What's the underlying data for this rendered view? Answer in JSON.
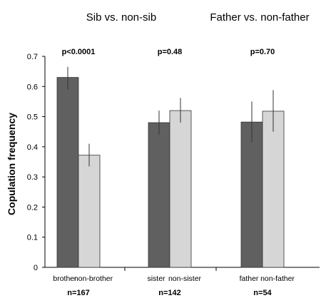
{
  "chart_data": {
    "type": "bar",
    "ylabel": "Copulation frequency",
    "ylim": [
      0,
      0.7
    ],
    "yticks": [
      "0",
      "0.1",
      "0.2",
      "0.3",
      "0.4",
      "0.5",
      "0.6",
      "0.7"
    ],
    "header_titles": [
      "Sib vs. non-sib",
      "Father vs. non-father"
    ],
    "colors": {
      "dark": "#606060",
      "light": "#d6d6d6"
    },
    "groups": [
      {
        "p_label": "p<0.0001",
        "n_label": "n=167",
        "bars": [
          {
            "label": "brother",
            "value": 0.63,
            "err_low": 0.59,
            "err_high": 0.665,
            "shade": "dark"
          },
          {
            "label": "non-brother",
            "value": 0.372,
            "err_low": 0.335,
            "err_high": 0.41,
            "shade": "light"
          }
        ]
      },
      {
        "p_label": "p=0.48",
        "n_label": "n=142",
        "bars": [
          {
            "label": "sister",
            "value": 0.48,
            "err_low": 0.44,
            "err_high": 0.52,
            "shade": "dark"
          },
          {
            "label": "non-sister",
            "value": 0.52,
            "err_low": 0.48,
            "err_high": 0.562,
            "shade": "light"
          }
        ]
      },
      {
        "p_label": "p=0.70",
        "n_label": "n=54",
        "bars": [
          {
            "label": "father",
            "value": 0.482,
            "err_low": 0.415,
            "err_high": 0.55,
            "shade": "dark"
          },
          {
            "label": "non-father",
            "value": 0.518,
            "err_low": 0.45,
            "err_high": 0.588,
            "shade": "light"
          }
        ]
      }
    ]
  }
}
